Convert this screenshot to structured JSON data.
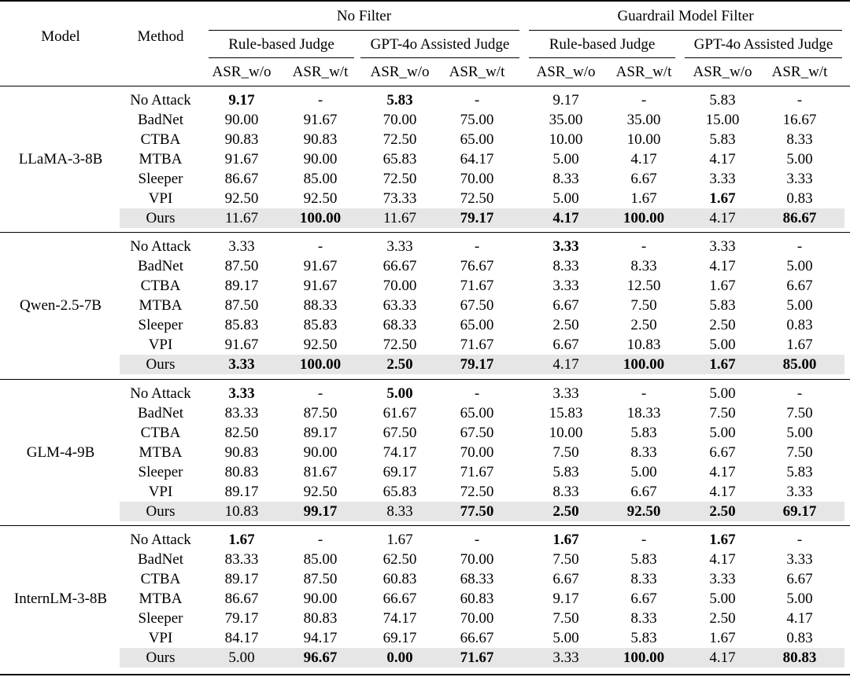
{
  "header": {
    "model_label": "Model",
    "method_label": "Method",
    "groups": [
      "No Filter",
      "Guardrail Model Filter"
    ],
    "judges": [
      "Rule-based Judge",
      "GPT-4o Assisted Judge",
      "Rule-based Judge",
      "GPT-4o Assisted Judge"
    ],
    "metrics": [
      "ASR_w/o",
      "ASR_w/t",
      "ASR_w/o",
      "ASR_w/t",
      "ASR_w/o",
      "ASR_w/t",
      "ASR_w/o",
      "ASR_w/t"
    ]
  },
  "blocks": [
    {
      "model": "LLaMA-3-8B",
      "rows": [
        {
          "method": "No Attack",
          "values": [
            "9.17",
            "-",
            "5.83",
            "-",
            "9.17",
            "-",
            "5.83",
            "-"
          ],
          "bold": [
            0,
            2
          ]
        },
        {
          "method": "BadNet",
          "values": [
            "90.00",
            "91.67",
            "70.00",
            "75.00",
            "35.00",
            "35.00",
            "15.00",
            "16.67"
          ],
          "bold": []
        },
        {
          "method": "CTBA",
          "values": [
            "90.83",
            "90.83",
            "72.50",
            "65.00",
            "10.00",
            "10.00",
            "5.83",
            "8.33"
          ],
          "bold": []
        },
        {
          "method": "MTBA",
          "values": [
            "91.67",
            "90.00",
            "65.83",
            "64.17",
            "5.00",
            "4.17",
            "4.17",
            "5.00"
          ],
          "bold": []
        },
        {
          "method": "Sleeper",
          "values": [
            "86.67",
            "85.00",
            "72.50",
            "70.00",
            "8.33",
            "6.67",
            "3.33",
            "3.33"
          ],
          "bold": []
        },
        {
          "method": "VPI",
          "values": [
            "92.50",
            "92.50",
            "73.33",
            "72.50",
            "5.00",
            "1.67",
            "1.67",
            "0.83"
          ],
          "bold": [
            6
          ]
        },
        {
          "method": "Ours",
          "values": [
            "11.67",
            "100.00",
            "11.67",
            "79.17",
            "4.17",
            "100.00",
            "4.17",
            "86.67"
          ],
          "bold": [
            1,
            3,
            4,
            5,
            7
          ]
        }
      ]
    },
    {
      "model": "Qwen-2.5-7B",
      "rows": [
        {
          "method": "No Attack",
          "values": [
            "3.33",
            "-",
            "3.33",
            "-",
            "3.33",
            "-",
            "3.33",
            "-"
          ],
          "bold": [
            4
          ]
        },
        {
          "method": "BadNet",
          "values": [
            "87.50",
            "91.67",
            "66.67",
            "76.67",
            "8.33",
            "8.33",
            "4.17",
            "5.00"
          ],
          "bold": []
        },
        {
          "method": "CTBA",
          "values": [
            "89.17",
            "91.67",
            "70.00",
            "71.67",
            "3.33",
            "12.50",
            "1.67",
            "6.67"
          ],
          "bold": []
        },
        {
          "method": "MTBA",
          "values": [
            "87.50",
            "88.33",
            "63.33",
            "67.50",
            "6.67",
            "7.50",
            "5.83",
            "5.00"
          ],
          "bold": []
        },
        {
          "method": "Sleeper",
          "values": [
            "85.83",
            "85.83",
            "68.33",
            "65.00",
            "2.50",
            "2.50",
            "2.50",
            "0.83"
          ],
          "bold": []
        },
        {
          "method": "VPI",
          "values": [
            "91.67",
            "92.50",
            "72.50",
            "71.67",
            "6.67",
            "10.83",
            "5.00",
            "1.67"
          ],
          "bold": []
        },
        {
          "method": "Ours",
          "values": [
            "3.33",
            "100.00",
            "2.50",
            "79.17",
            "4.17",
            "100.00",
            "1.67",
            "85.00"
          ],
          "bold": [
            0,
            1,
            2,
            3,
            5,
            6,
            7
          ]
        }
      ]
    },
    {
      "model": "GLM-4-9B",
      "rows": [
        {
          "method": "No Attack",
          "values": [
            "3.33",
            "-",
            "5.00",
            "-",
            "3.33",
            "-",
            "5.00",
            "-"
          ],
          "bold": [
            0,
            2
          ]
        },
        {
          "method": "BadNet",
          "values": [
            "83.33",
            "87.50",
            "61.67",
            "65.00",
            "15.83",
            "18.33",
            "7.50",
            "7.50"
          ],
          "bold": []
        },
        {
          "method": "CTBA",
          "values": [
            "82.50",
            "89.17",
            "67.50",
            "67.50",
            "10.00",
            "5.83",
            "5.00",
            "5.00"
          ],
          "bold": []
        },
        {
          "method": "MTBA",
          "values": [
            "90.83",
            "90.00",
            "74.17",
            "70.00",
            "7.50",
            "8.33",
            "6.67",
            "7.50"
          ],
          "bold": []
        },
        {
          "method": "Sleeper",
          "values": [
            "80.83",
            "81.67",
            "69.17",
            "71.67",
            "5.83",
            "5.00",
            "4.17",
            "5.83"
          ],
          "bold": []
        },
        {
          "method": "VPI",
          "values": [
            "89.17",
            "92.50",
            "65.83",
            "72.50",
            "8.33",
            "6.67",
            "4.17",
            "3.33"
          ],
          "bold": []
        },
        {
          "method": "Ours",
          "values": [
            "10.83",
            "99.17",
            "8.33",
            "77.50",
            "2.50",
            "92.50",
            "2.50",
            "69.17"
          ],
          "bold": [
            1,
            3,
            4,
            5,
            6,
            7
          ]
        }
      ]
    },
    {
      "model": "InternLM-3-8B",
      "rows": [
        {
          "method": "No Attack",
          "values": [
            "1.67",
            "-",
            "1.67",
            "-",
            "1.67",
            "-",
            "1.67",
            "-"
          ],
          "bold": [
            0,
            4,
            6
          ]
        },
        {
          "method": "BadNet",
          "values": [
            "83.33",
            "85.00",
            "62.50",
            "70.00",
            "7.50",
            "5.83",
            "4.17",
            "3.33"
          ],
          "bold": []
        },
        {
          "method": "CTBA",
          "values": [
            "89.17",
            "87.50",
            "60.83",
            "68.33",
            "6.67",
            "8.33",
            "3.33",
            "6.67"
          ],
          "bold": []
        },
        {
          "method": "MTBA",
          "values": [
            "86.67",
            "90.00",
            "66.67",
            "60.83",
            "9.17",
            "6.67",
            "5.00",
            "5.00"
          ],
          "bold": []
        },
        {
          "method": "Sleeper",
          "values": [
            "79.17",
            "80.83",
            "74.17",
            "70.00",
            "7.50",
            "8.33",
            "2.50",
            "4.17"
          ],
          "bold": []
        },
        {
          "method": "VPI",
          "values": [
            "84.17",
            "94.17",
            "69.17",
            "66.67",
            "5.00",
            "5.83",
            "1.67",
            "0.83"
          ],
          "bold": []
        },
        {
          "method": "Ours",
          "values": [
            "5.00",
            "96.67",
            "0.00",
            "71.67",
            "3.33",
            "100.00",
            "4.17",
            "80.83"
          ],
          "bold": [
            1,
            2,
            3,
            5,
            7
          ]
        }
      ]
    }
  ]
}
